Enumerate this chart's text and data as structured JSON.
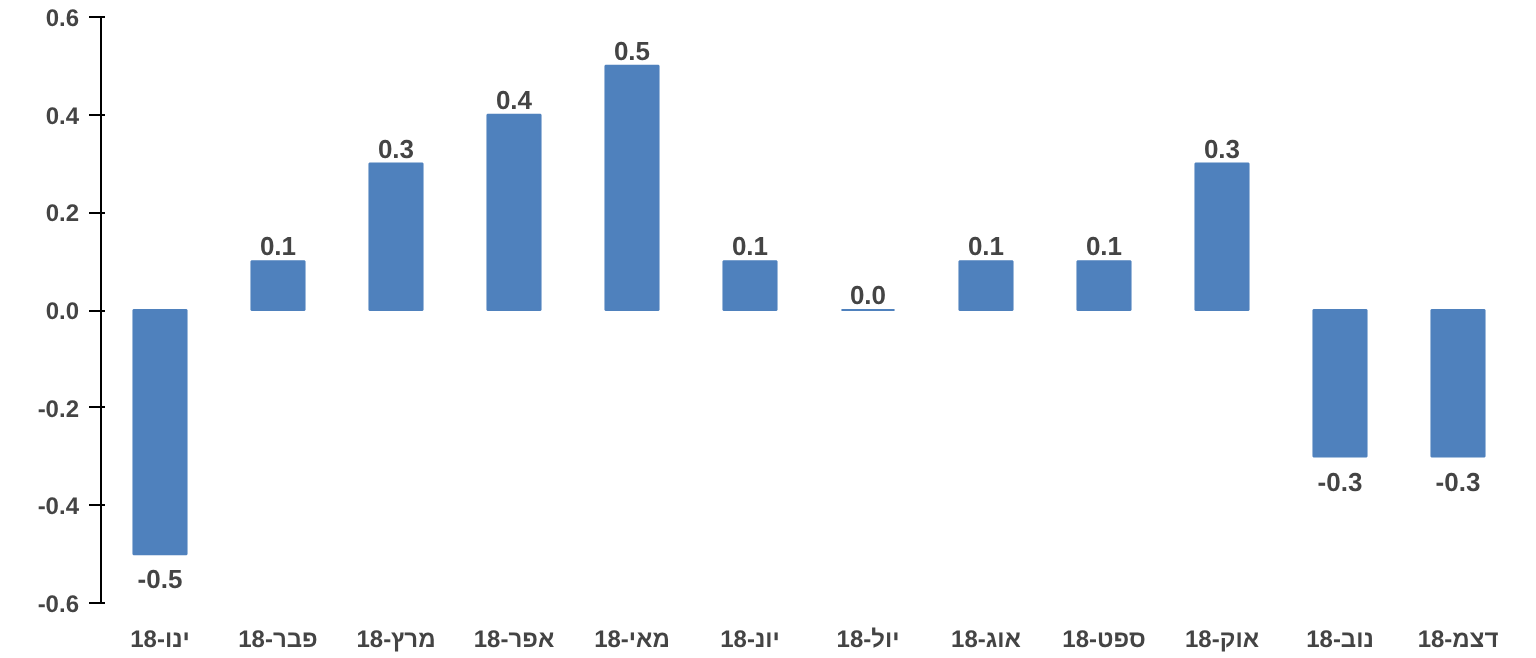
{
  "chart_data": {
    "type": "bar",
    "categories": [
      "ינו-18",
      "פבר-18",
      "מרץ-18",
      "אפר-18",
      "מאי-18",
      "יונ-18",
      "יול-18",
      "אוג-18",
      "ספט-18",
      "אוק-18",
      "נוב-18",
      "דצמ-18"
    ],
    "values": [
      -0.5,
      0.1,
      0.3,
      0.4,
      0.5,
      0.1,
      0.0,
      0.1,
      0.1,
      0.3,
      -0.3,
      -0.3
    ],
    "color": "#4f81bd",
    "ylim": [
      -0.6,
      0.6
    ],
    "yticks": [
      -0.6,
      -0.4,
      -0.2,
      {
        "value": 0,
        "label": "0.0"
      },
      0.2,
      0.4,
      0.6
    ],
    "value_labels": [
      "-0.5",
      "0.1",
      "0.3",
      "0.4",
      "0.5",
      "0.1",
      "0.0",
      "0.1",
      "0.1",
      "0.3",
      "-0.3",
      "-0.3"
    ],
    "grid": false
  }
}
